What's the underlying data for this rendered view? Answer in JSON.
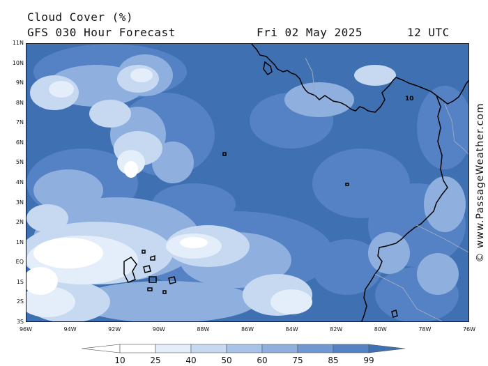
{
  "header": {
    "title": "Cloud Cover (%)",
    "subtitle": "GFS 030 Hour Forecast",
    "date": "Fri 02 May 2025",
    "time": "12 UTC"
  },
  "credit": "© www.PassageWeather.com",
  "map": {
    "lat_labels": [
      "11N",
      "10N",
      "9N",
      "8N",
      "7N",
      "6N",
      "5N",
      "4N",
      "3N",
      "2N",
      "1N",
      "EQ",
      "1S",
      "2S",
      "3S"
    ],
    "lon_labels": [
      "96W",
      "94W",
      "92W",
      "90W",
      "88W",
      "86W",
      "84W",
      "82W",
      "80W",
      "78W",
      "76W"
    ],
    "lat_range": [
      -3,
      11
    ],
    "lon_range": [
      -96,
      -76
    ],
    "island_label": "10"
  },
  "legend": {
    "values": [
      "10",
      "25",
      "40",
      "50",
      "60",
      "75",
      "85",
      "99"
    ],
    "colors": [
      "#ffffff",
      "#e4eefa",
      "#c6d9f1",
      "#a8c3e8",
      "#8fb0df",
      "#6f97d2",
      "#5482c5",
      "#3f70b2"
    ]
  }
}
